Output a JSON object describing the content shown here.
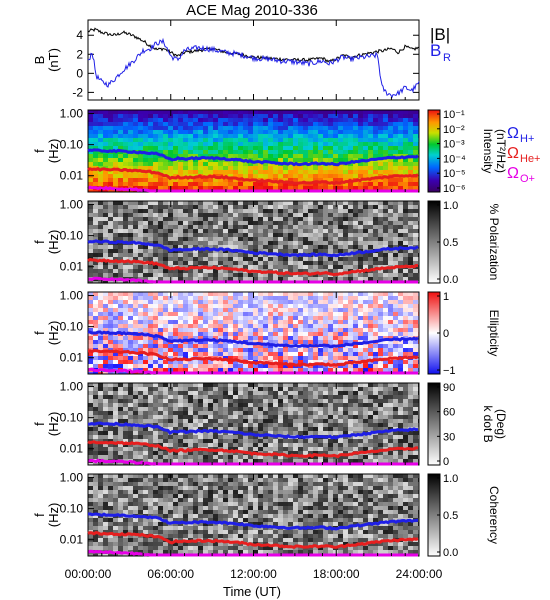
{
  "title": "ACE Mag 2010-336",
  "colors": {
    "b_total": "#000000",
    "b_r": "#1f1fe6",
    "omega_h": "#1f1fe6",
    "omega_he": "#e61f1f",
    "omega_o": "#e600e6",
    "frame": "#000000"
  },
  "chart_data": [
    {
      "type": "line",
      "panel": "magnetic-field",
      "ylabel_line1": "B",
      "ylabel_line2": "(nT)",
      "ylim": [
        -2.8,
        5.6
      ],
      "yticks": [
        "4",
        "2",
        "0",
        "-2"
      ],
      "ytick_values": [
        4,
        2,
        0,
        -2
      ],
      "series": [
        {
          "name": "|B|",
          "color": "#000000",
          "x": [
            0,
            0.5,
            1,
            1.5,
            2,
            2.5,
            3,
            3.5,
            4,
            4.5,
            5,
            5.5,
            6,
            6.5,
            7,
            8,
            9,
            10,
            11,
            12,
            13,
            14,
            15,
            16,
            17,
            17.5,
            18,
            18.5,
            19,
            20,
            21,
            21.5,
            22,
            22.5,
            23,
            23.5,
            24
          ],
          "values": [
            4.4,
            4.6,
            4.3,
            4.1,
            4.0,
            4.3,
            4.1,
            3.8,
            3.4,
            2.9,
            2.5,
            2.6,
            2.2,
            1.8,
            2.2,
            2.4,
            2.6,
            2.2,
            2.0,
            1.7,
            1.6,
            1.5,
            1.4,
            1.4,
            1.6,
            1.2,
            1.5,
            1.9,
            1.7,
            2.0,
            2.3,
            2.4,
            2.6,
            2.2,
            2.8,
            2.5,
            2.7
          ]
        },
        {
          "name": "B_R",
          "color": "#1f1fe6",
          "x": [
            0,
            0.3,
            0.6,
            1,
            1.5,
            2,
            2.5,
            3,
            3.5,
            4,
            4.5,
            5,
            5.5,
            6,
            6.5,
            7,
            8,
            9,
            10,
            11,
            12,
            13,
            14,
            15,
            16,
            17,
            17.5,
            18,
            18.5,
            19,
            20,
            21,
            21.3,
            21.6,
            22,
            22.5,
            23,
            23.5,
            24
          ],
          "values": [
            1.2,
            2.3,
            -0.3,
            -0.9,
            -1.2,
            -0.5,
            0.3,
            0.9,
            1.6,
            2.4,
            2.6,
            3.2,
            3.3,
            1.8,
            1.4,
            2.4,
            2.7,
            2.5,
            2.2,
            2.0,
            1.6,
            1.5,
            1.3,
            1.2,
            1.0,
            1.3,
            1.0,
            1.4,
            1.7,
            1.5,
            1.7,
            1.9,
            -1.4,
            -2.0,
            -2.3,
            -2.1,
            -1.5,
            -1.8,
            -1.0
          ]
        }
      ]
    },
    {
      "type": "heatmap",
      "panel": "intensity",
      "ylabel_line1": "f",
      "ylabel_line2": "(Hz)",
      "colorbar_label_line1": "Intensity",
      "colorbar_label_line2": "(nT²/Hz)",
      "colorbar_ticks": [
        "10⁻¹",
        "10⁻²",
        "10⁻³",
        "10⁻⁴",
        "10⁻⁵",
        "10⁻⁶"
      ],
      "colorscale": "rainbow"
    },
    {
      "type": "heatmap",
      "panel": "polarization",
      "ylabel_line1": "f",
      "ylabel_line2": "(Hz)",
      "colorbar_label_line1": "% Polarization",
      "colorbar_label_line2": "",
      "colorbar_ticks": [
        "1.0",
        "0.5",
        "0.0"
      ],
      "colorscale": "gray"
    },
    {
      "type": "heatmap",
      "panel": "ellipticity",
      "ylabel_line1": "f",
      "ylabel_line2": "(Hz)",
      "colorbar_label_line1": "Ellipticity",
      "colorbar_label_line2": "",
      "colorbar_ticks": [
        "1",
        "0",
        "−1"
      ],
      "colorscale": "bwr"
    },
    {
      "type": "heatmap",
      "panel": "k-dot-b",
      "ylabel_line1": "f",
      "ylabel_line2": "(Hz)",
      "colorbar_label_line1": "k dot B",
      "colorbar_label_line2": "(Deg)",
      "colorbar_ticks": [
        "90",
        "60",
        "30",
        "0"
      ],
      "colorscale": "gray"
    },
    {
      "type": "heatmap",
      "panel": "coherency",
      "ylabel_line1": "f",
      "ylabel_line2": "(Hz)",
      "colorbar_label_line1": "Coherency",
      "colorbar_label_line2": "",
      "colorbar_ticks": [
        "1.0",
        "0.5",
        "0.0"
      ],
      "colorscale": "gray"
    }
  ],
  "spectrogram_axes": {
    "ylim_hz": [
      0.003,
      1.3
    ],
    "yticks": [
      "1.00",
      "0.10",
      "0.01"
    ],
    "ytick_values": [
      1.0,
      0.1,
      0.01
    ],
    "log": true
  },
  "gyrofrequency_curves": {
    "x": [
      0,
      1,
      2,
      3,
      4,
      5,
      5.5,
      6,
      6.5,
      7,
      8,
      9,
      10,
      11,
      12,
      13,
      14,
      15,
      16,
      17,
      18,
      19,
      20,
      21,
      22,
      23,
      24
    ],
    "omega_h": [
      0.065,
      0.064,
      0.062,
      0.06,
      0.056,
      0.05,
      0.042,
      0.033,
      0.036,
      0.035,
      0.037,
      0.037,
      0.035,
      0.032,
      0.028,
      0.027,
      0.025,
      0.024,
      0.024,
      0.025,
      0.023,
      0.027,
      0.03,
      0.034,
      0.038,
      0.04,
      0.042
    ],
    "omega_he": [
      0.0162,
      0.016,
      0.0155,
      0.015,
      0.014,
      0.0125,
      0.0105,
      0.0083,
      0.009,
      0.0088,
      0.0093,
      0.0093,
      0.0088,
      0.008,
      0.007,
      0.0068,
      0.0063,
      0.006,
      0.006,
      0.0063,
      0.0058,
      0.0068,
      0.0075,
      0.0085,
      0.0095,
      0.01,
      0.0105
    ],
    "omega_o": [
      0.0041,
      0.004,
      0.0039,
      0.0037,
      0.0035,
      0.0031,
      0.0026,
      0.0021,
      0.0022,
      0.0022,
      0.0023,
      0.0023,
      0.0022,
      0.002,
      0.0018,
      0.0017,
      0.0016,
      0.0015,
      0.0015,
      0.0016,
      0.0015,
      0.0017,
      0.0019,
      0.0021,
      0.0024,
      0.0025,
      0.0026
    ]
  },
  "legend": {
    "b_total": "|B|",
    "b_r_main": "B",
    "b_r_sub": "R",
    "omega_symbol": "Ω",
    "omega_h_sub": "H+",
    "omega_he_sub": "He+",
    "omega_o_sub": "O+"
  },
  "x_axis": {
    "xlim": [
      0,
      24
    ],
    "ticks": [
      "00:00:00",
      "06:00:00",
      "12:00:00",
      "18:00:00",
      "24:00:00"
    ],
    "tick_values": [
      0,
      6,
      12,
      18,
      24
    ],
    "label": "Time (UT)"
  }
}
